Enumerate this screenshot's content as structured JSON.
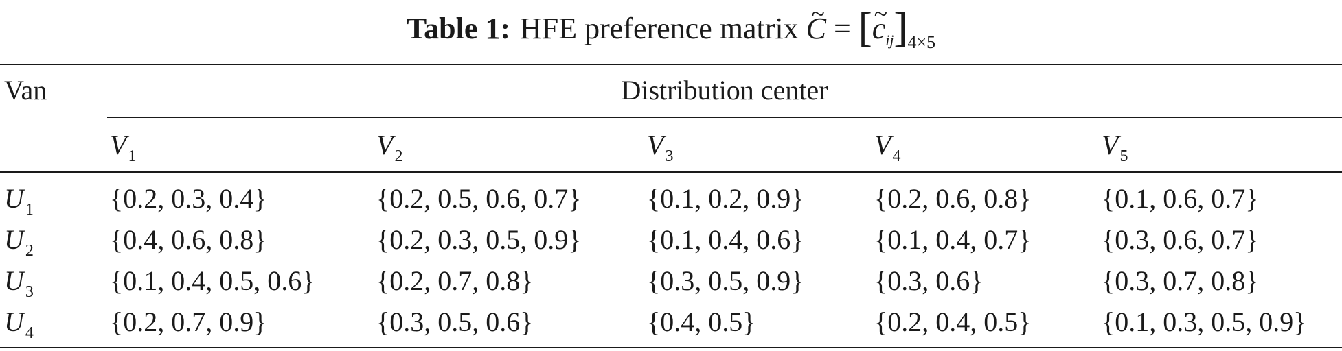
{
  "caption": {
    "label": "Table 1:",
    "text": "HFE preference matrix",
    "symbol": "C",
    "tilde": "~",
    "equals": "=",
    "element": "c",
    "element_index": "ij",
    "dims": "4×5"
  },
  "table": {
    "row_header": "Van",
    "group_header": "Distribution center",
    "columns": [
      {
        "symbol": "V",
        "index": "1"
      },
      {
        "symbol": "V",
        "index": "2"
      },
      {
        "symbol": "V",
        "index": "3"
      },
      {
        "symbol": "V",
        "index": "4"
      },
      {
        "symbol": "V",
        "index": "5"
      }
    ],
    "rows": [
      {
        "symbol": "U",
        "index": "1",
        "cells": [
          "{0.2, 0.3, 0.4}",
          "{0.2, 0.5, 0.6, 0.7}",
          "{0.1, 0.2, 0.9}",
          "{0.2, 0.6, 0.8}",
          "{0.1, 0.6, 0.7}"
        ]
      },
      {
        "symbol": "U",
        "index": "2",
        "cells": [
          "{0.4, 0.6, 0.8}",
          "{0.2, 0.3, 0.5, 0.9}",
          "{0.1, 0.4, 0.6}",
          "{0.1, 0.4, 0.7}",
          "{0.3, 0.6, 0.7}"
        ]
      },
      {
        "symbol": "U",
        "index": "3",
        "cells": [
          "{0.1, 0.4, 0.5, 0.6}",
          "{0.2, 0.7, 0.8}",
          "{0.3, 0.5, 0.9}",
          "{0.3, 0.6}",
          "{0.3, 0.7, 0.8}"
        ]
      },
      {
        "symbol": "U",
        "index": "4",
        "cells": [
          "{0.2, 0.7, 0.9}",
          "{0.3, 0.5, 0.6}",
          "{0.4, 0.5}",
          "{0.2, 0.4, 0.5}",
          "{0.1, 0.3, 0.5, 0.9}"
        ]
      }
    ]
  }
}
